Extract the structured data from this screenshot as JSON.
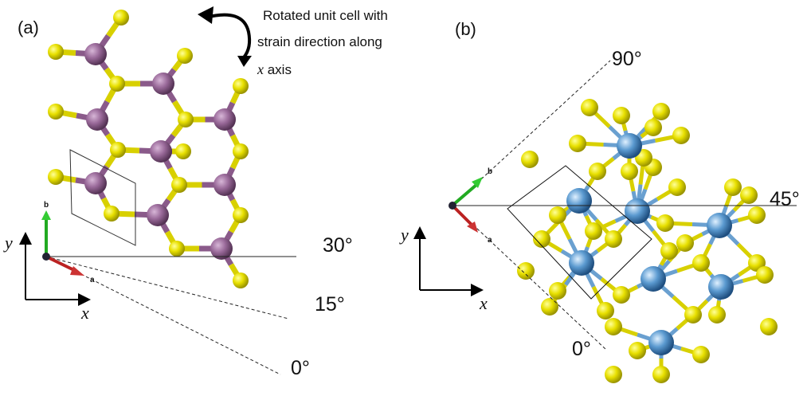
{
  "panel_a": {
    "label": "(a)",
    "note_lines": [
      "Rotated unit cell with",
      "strain direction along"
    ],
    "note_axis": "x",
    "note_axis_suffix": " axis",
    "angles": [
      "30°",
      "15°",
      "0°"
    ],
    "lattice_b": "b",
    "lattice_a": "a",
    "axis_y": "y",
    "axis_x": "x"
  },
  "panel_b": {
    "label": "(b)",
    "angles": [
      "90°",
      "45°",
      "0°"
    ],
    "lattice_b": "b",
    "lattice_a": "a",
    "axis_y": "y",
    "axis_x": "x"
  }
}
